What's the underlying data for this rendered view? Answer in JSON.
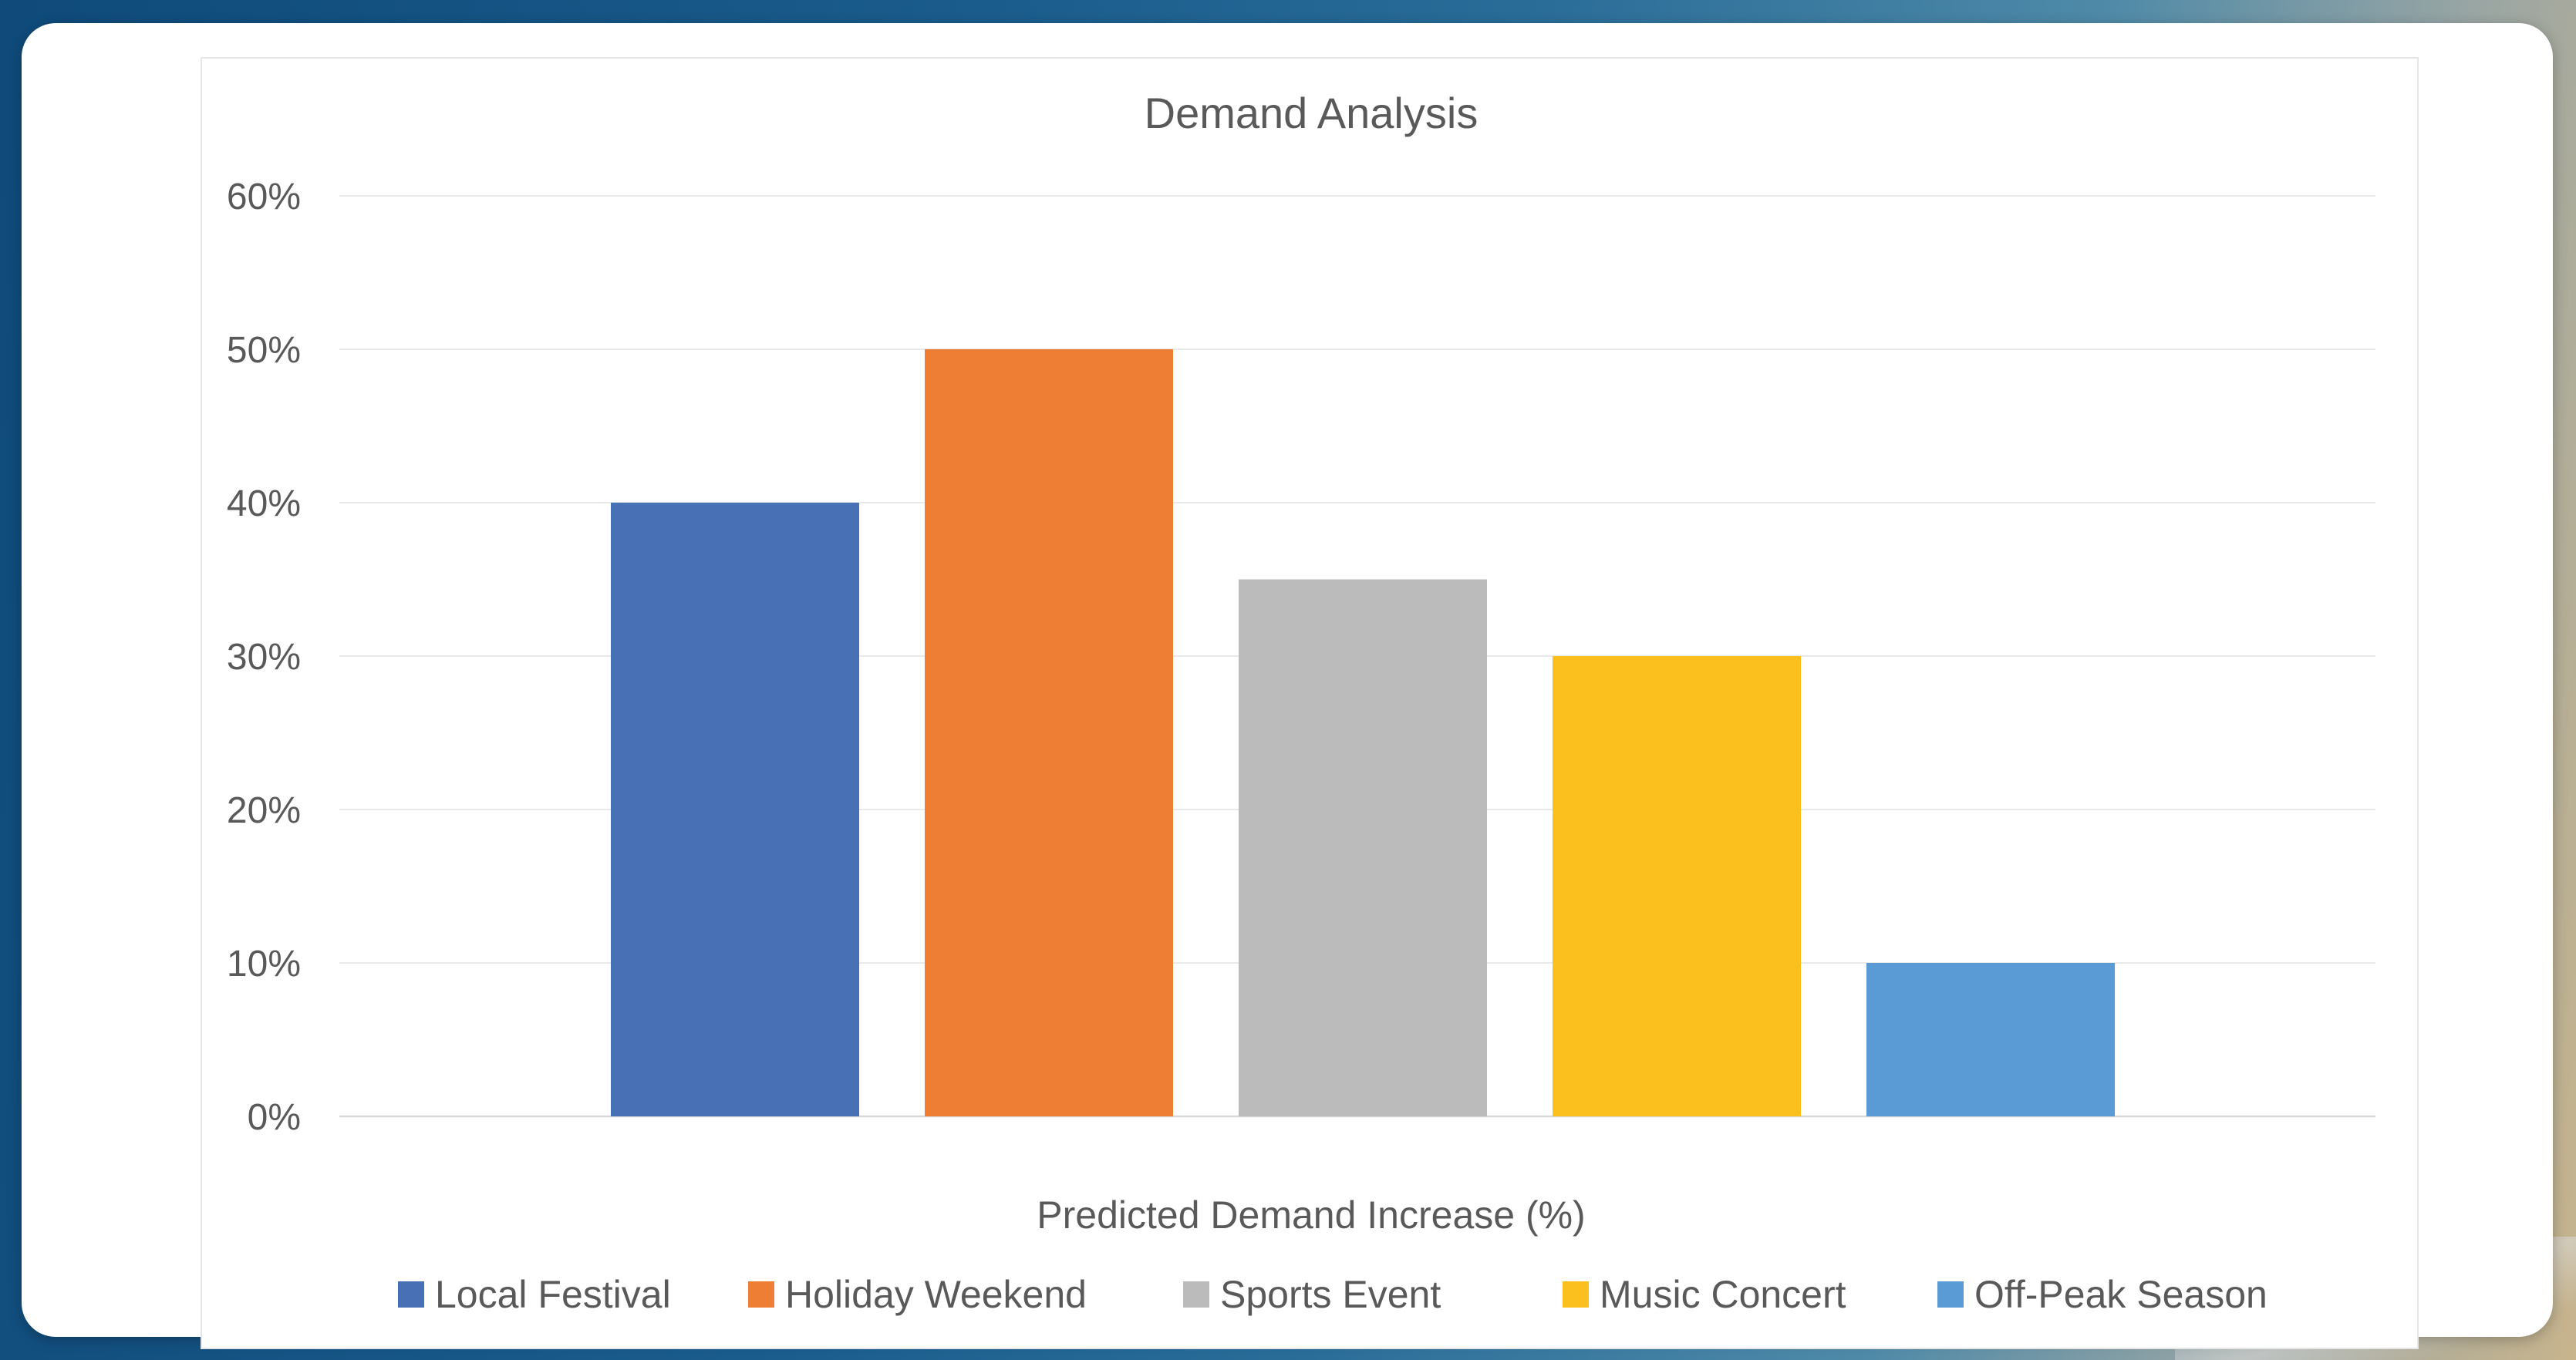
{
  "chart_data": {
    "type": "bar",
    "title": "Demand Analysis",
    "xlabel": "Predicted Demand Increase (%)",
    "ylabel": "",
    "ylim": [
      0,
      60
    ],
    "y_ticks": [
      "0%",
      "10%",
      "20%",
      "30%",
      "40%",
      "50%",
      "60%"
    ],
    "y_tick_values": [
      0,
      10,
      20,
      30,
      40,
      50,
      60
    ],
    "grid": true,
    "legend_position": "bottom",
    "series": [
      {
        "name": "Local Festival",
        "values": [
          40
        ],
        "color": "#4771b4"
      },
      {
        "name": "Holiday Weekend",
        "values": [
          50
        ],
        "color": "#ee7e33"
      },
      {
        "name": "Sports Event",
        "values": [
          35
        ],
        "color": "#bbbbbb"
      },
      {
        "name": "Music Concert",
        "values": [
          30
        ],
        "color": "#fbc01e"
      },
      {
        "name": "Off-Peak Season",
        "values": [
          10
        ],
        "color": "#5b9bd5"
      }
    ],
    "colors": {
      "text": "#595959",
      "gridline": "#e9e9e9",
      "axis": "#d9d9d9"
    }
  }
}
